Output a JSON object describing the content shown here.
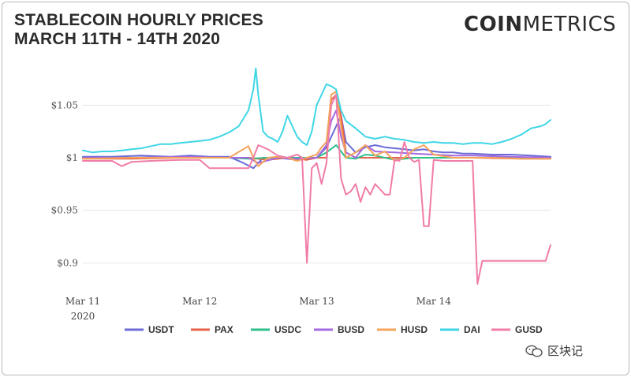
{
  "title": {
    "line1": "STABLECOIN HOURLY PRICES",
    "line2": "MARCH 11TH - 14TH 2020"
  },
  "logo": {
    "bold": "COIN",
    "light": "METRICS"
  },
  "watermark": {
    "text": "区块记"
  },
  "chart_data": {
    "type": "line",
    "title": "Stablecoin Hourly Prices March 11th - 14th 2020",
    "xlabel": "",
    "ylabel": "",
    "x_range": [
      0,
      96
    ],
    "x_ticks": [
      {
        "x": 0,
        "label": "Mar 11",
        "sublabel": "2020"
      },
      {
        "x": 24,
        "label": "Mar 12"
      },
      {
        "x": 48,
        "label": "Mar 13"
      },
      {
        "x": 72,
        "label": "Mar 14"
      }
    ],
    "ylim": [
      0.88,
      1.09
    ],
    "y_ticks": [
      {
        "value": 0.9,
        "label": "$0.9"
      },
      {
        "value": 0.95,
        "label": "$0.95"
      },
      {
        "value": 1.0,
        "label": "$1"
      },
      {
        "value": 1.05,
        "label": "$1.05"
      }
    ],
    "grid": true,
    "legend_position": "bottom",
    "series": [
      {
        "name": "USDT",
        "color": "#6b6bd6",
        "points": [
          [
            0,
            1.001
          ],
          [
            6,
            1.001
          ],
          [
            12,
            1.002
          ],
          [
            18,
            1.001
          ],
          [
            22,
            1.002
          ],
          [
            26,
            1.001
          ],
          [
            30,
            1.001
          ],
          [
            33,
            0.995
          ],
          [
            35,
            0.99
          ],
          [
            37,
            1.0
          ],
          [
            40,
            1.0
          ],
          [
            44,
            0.998
          ],
          [
            48,
            1.0
          ],
          [
            50,
            1.01
          ],
          [
            52,
            1.03
          ],
          [
            53,
            1.04
          ],
          [
            54,
            1.015
          ],
          [
            56,
            1.005
          ],
          [
            58,
            1.01
          ],
          [
            60,
            1.012
          ],
          [
            62,
            1.01
          ],
          [
            64,
            1.009
          ],
          [
            66,
            1.008
          ],
          [
            68,
            1.007
          ],
          [
            70,
            1.008
          ],
          [
            72,
            1.006
          ],
          [
            74,
            1.005
          ],
          [
            76,
            1.005
          ],
          [
            78,
            1.004
          ],
          [
            80,
            1.004
          ],
          [
            84,
            1.003
          ],
          [
            88,
            1.003
          ],
          [
            92,
            1.002
          ],
          [
            96,
            1.001
          ]
        ]
      },
      {
        "name": "PAX",
        "color": "#e8624a",
        "points": [
          [
            0,
            0.999
          ],
          [
            10,
            0.999
          ],
          [
            20,
            1.0
          ],
          [
            30,
            1.0
          ],
          [
            34,
            1.0
          ],
          [
            38,
            0.998
          ],
          [
            42,
            1.0
          ],
          [
            46,
            0.998
          ],
          [
            48,
            1.0
          ],
          [
            50,
            1.0
          ],
          [
            51,
            1.055
          ],
          [
            52,
            1.06
          ],
          [
            53,
            1.04
          ],
          [
            54,
            1.005
          ],
          [
            56,
            1.0
          ],
          [
            60,
            1.0
          ],
          [
            64,
            1.0
          ],
          [
            70,
            1.0
          ],
          [
            80,
            1.0
          ],
          [
            90,
            0.999
          ],
          [
            96,
            0.999
          ]
        ]
      },
      {
        "name": "USDC",
        "color": "#2fbf8a",
        "points": [
          [
            0,
            1.0
          ],
          [
            10,
            1.0
          ],
          [
            20,
            1.0
          ],
          [
            30,
            1.0
          ],
          [
            34,
            0.999
          ],
          [
            38,
            1.0
          ],
          [
            44,
            1.0
          ],
          [
            48,
            1.0
          ],
          [
            50,
            1.005
          ],
          [
            52,
            1.012
          ],
          [
            54,
            1.0
          ],
          [
            56,
            0.999
          ],
          [
            58,
            1.003
          ],
          [
            60,
            1.002
          ],
          [
            64,
            0.998
          ],
          [
            68,
            1.0
          ],
          [
            72,
            1.0
          ],
          [
            80,
            1.0
          ],
          [
            88,
            1.0
          ],
          [
            96,
            1.0
          ]
        ]
      },
      {
        "name": "BUSD",
        "color": "#a569e0",
        "points": [
          [
            0,
            1.0
          ],
          [
            10,
            1.0
          ],
          [
            20,
            1.001
          ],
          [
            30,
            1.0
          ],
          [
            34,
            1.0
          ],
          [
            36,
            0.995
          ],
          [
            40,
            1.0
          ],
          [
            44,
            0.999
          ],
          [
            48,
            1.0
          ],
          [
            50,
            1.012
          ],
          [
            51,
            1.035
          ],
          [
            52,
            1.045
          ],
          [
            53,
            1.02
          ],
          [
            54,
            1.005
          ],
          [
            56,
            1.0
          ],
          [
            58,
            1.012
          ],
          [
            60,
            1.006
          ],
          [
            64,
            1.005
          ],
          [
            68,
            1.004
          ],
          [
            72,
            1.003
          ],
          [
            76,
            1.002
          ],
          [
            80,
            1.002
          ],
          [
            88,
            1.001
          ],
          [
            96,
            1.0
          ]
        ]
      },
      {
        "name": "HUSD",
        "color": "#f4a35a",
        "points": [
          [
            0,
            0.999
          ],
          [
            10,
            1.0
          ],
          [
            20,
            1.0
          ],
          [
            30,
            1.0
          ],
          [
            34,
            1.011
          ],
          [
            35,
            1.0
          ],
          [
            36,
            0.992
          ],
          [
            38,
            1.0
          ],
          [
            40,
            1.001
          ],
          [
            42,
            1.0
          ],
          [
            44,
            0.997
          ],
          [
            46,
            1.0
          ],
          [
            48,
            1.003
          ],
          [
            49,
            1.01
          ],
          [
            50,
            1.015
          ],
          [
            51,
            1.06
          ],
          [
            52,
            1.063
          ],
          [
            53,
            1.03
          ],
          [
            54,
            1.0
          ],
          [
            56,
            1.005
          ],
          [
            58,
            1.012
          ],
          [
            60,
            1.002
          ],
          [
            62,
            1.006
          ],
          [
            64,
            0.997
          ],
          [
            66,
            1.0
          ],
          [
            68,
            1.008
          ],
          [
            70,
            1.012
          ],
          [
            72,
            1.003
          ],
          [
            76,
            1.0
          ],
          [
            80,
            1.0
          ],
          [
            84,
            1.0
          ],
          [
            90,
            0.999
          ],
          [
            96,
            0.999
          ]
        ]
      },
      {
        "name": "DAI",
        "color": "#3fd6e6",
        "points": [
          [
            0,
            1.007
          ],
          [
            2,
            1.005
          ],
          [
            4,
            1.006
          ],
          [
            6,
            1.006
          ],
          [
            8,
            1.007
          ],
          [
            10,
            1.008
          ],
          [
            12,
            1.009
          ],
          [
            14,
            1.011
          ],
          [
            16,
            1.013
          ],
          [
            18,
            1.013
          ],
          [
            20,
            1.014
          ],
          [
            22,
            1.015
          ],
          [
            24,
            1.016
          ],
          [
            26,
            1.017
          ],
          [
            28,
            1.02
          ],
          [
            30,
            1.024
          ],
          [
            32,
            1.03
          ],
          [
            34,
            1.045
          ],
          [
            35,
            1.065
          ],
          [
            35.5,
            1.085
          ],
          [
            36,
            1.06
          ],
          [
            37,
            1.025
          ],
          [
            38,
            1.02
          ],
          [
            39,
            1.018
          ],
          [
            40,
            1.015
          ],
          [
            41,
            1.025
          ],
          [
            42,
            1.04
          ],
          [
            43,
            1.03
          ],
          [
            44,
            1.02
          ],
          [
            45,
            1.015
          ],
          [
            46,
            1.012
          ],
          [
            47,
            1.025
          ],
          [
            48,
            1.05
          ],
          [
            49,
            1.06
          ],
          [
            50,
            1.07
          ],
          [
            51,
            1.068
          ],
          [
            52,
            1.065
          ],
          [
            53,
            1.045
          ],
          [
            54,
            1.035
          ],
          [
            56,
            1.028
          ],
          [
            58,
            1.02
          ],
          [
            60,
            1.018
          ],
          [
            62,
            1.02
          ],
          [
            64,
            1.018
          ],
          [
            66,
            1.017
          ],
          [
            68,
            1.015
          ],
          [
            70,
            1.014
          ],
          [
            72,
            1.015
          ],
          [
            74,
            1.014
          ],
          [
            76,
            1.014
          ],
          [
            78,
            1.013
          ],
          [
            80,
            1.014
          ],
          [
            82,
            1.014
          ],
          [
            84,
            1.013
          ],
          [
            86,
            1.015
          ],
          [
            88,
            1.018
          ],
          [
            90,
            1.022
          ],
          [
            92,
            1.028
          ],
          [
            94,
            1.03
          ],
          [
            95,
            1.032
          ],
          [
            96,
            1.036
          ]
        ]
      },
      {
        "name": "GUSD",
        "color": "#f07ca8",
        "points": [
          [
            0,
            0.997
          ],
          [
            6,
            0.997
          ],
          [
            8,
            0.992
          ],
          [
            10,
            0.996
          ],
          [
            14,
            0.997
          ],
          [
            20,
            0.998
          ],
          [
            24,
            0.998
          ],
          [
            26,
            0.99
          ],
          [
            30,
            0.99
          ],
          [
            33,
            0.99
          ],
          [
            34,
            0.99
          ],
          [
            35,
            1.0
          ],
          [
            36,
            1.012
          ],
          [
            38,
            1.008
          ],
          [
            40,
            1.002
          ],
          [
            42,
            1.0
          ],
          [
            44,
            1.003
          ],
          [
            45,
            1.0
          ],
          [
            46,
            0.9
          ],
          [
            47,
            0.99
          ],
          [
            48,
            0.995
          ],
          [
            49,
            0.975
          ],
          [
            50,
            0.995
          ],
          [
            51,
            1.05
          ],
          [
            52,
            1.06
          ],
          [
            53,
            0.98
          ],
          [
            54,
            0.965
          ],
          [
            55,
            0.968
          ],
          [
            56,
            0.975
          ],
          [
            57,
            0.958
          ],
          [
            58,
            0.972
          ],
          [
            59,
            0.965
          ],
          [
            60,
            0.975
          ],
          [
            61,
            0.97
          ],
          [
            62,
            0.965
          ],
          [
            63,
            0.965
          ],
          [
            64,
            0.998
          ],
          [
            65,
            0.997
          ],
          [
            66,
            1.015
          ],
          [
            67,
            1.0
          ],
          [
            68,
            0.996
          ],
          [
            69,
            0.998
          ],
          [
            70,
            0.935
          ],
          [
            71,
            0.935
          ],
          [
            72,
            0.998
          ],
          [
            74,
            0.997
          ],
          [
            76,
            0.997
          ],
          [
            78,
            0.997
          ],
          [
            80,
            0.997
          ],
          [
            81,
            0.88
          ],
          [
            82,
            0.902
          ],
          [
            84,
            0.902
          ],
          [
            88,
            0.902
          ],
          [
            92,
            0.902
          ],
          [
            95,
            0.902
          ],
          [
            96,
            0.917
          ]
        ]
      }
    ]
  }
}
